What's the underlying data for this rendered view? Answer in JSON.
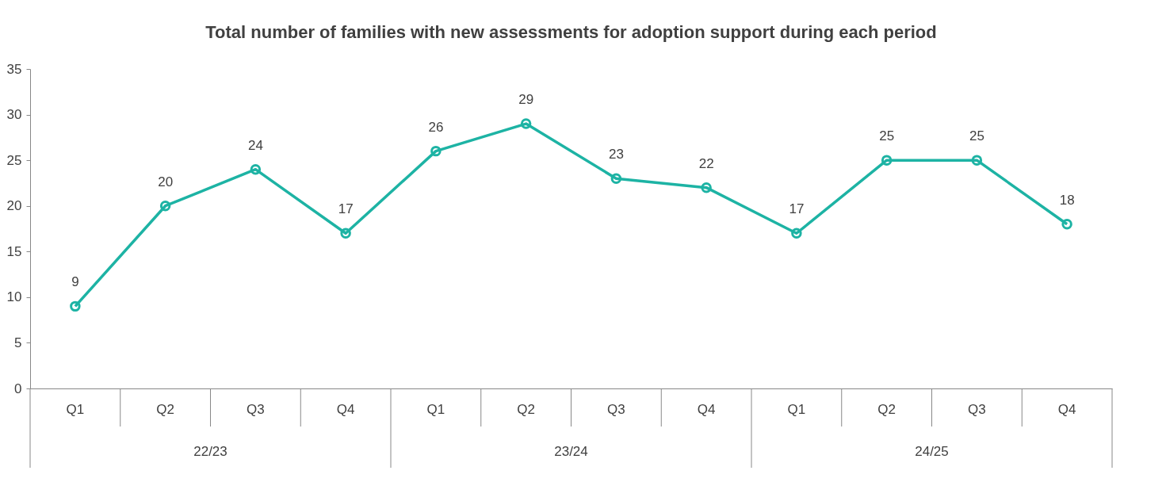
{
  "chart_data": {
    "type": "line",
    "title": "Total number of families with new assessments for adoption support during each period",
    "categories": [
      "Q1",
      "Q2",
      "Q3",
      "Q4",
      "Q1",
      "Q2",
      "Q3",
      "Q4",
      "Q1",
      "Q2",
      "Q3",
      "Q4"
    ],
    "series": [
      {
        "color": "#1db3a4",
        "values": [
          9,
          20,
          24,
          17,
          26,
          29,
          23,
          22,
          17,
          25,
          25,
          18
        ]
      }
    ],
    "ylim": [
      0,
      35
    ],
    "yticks": [
      0,
      5,
      10,
      15,
      20,
      25,
      30,
      35
    ],
    "data_labels": true,
    "marker": "circle",
    "line_style": "solid",
    "grid": false,
    "annotations": [
      "22/23",
      "23/24",
      "24/25"
    ]
  }
}
